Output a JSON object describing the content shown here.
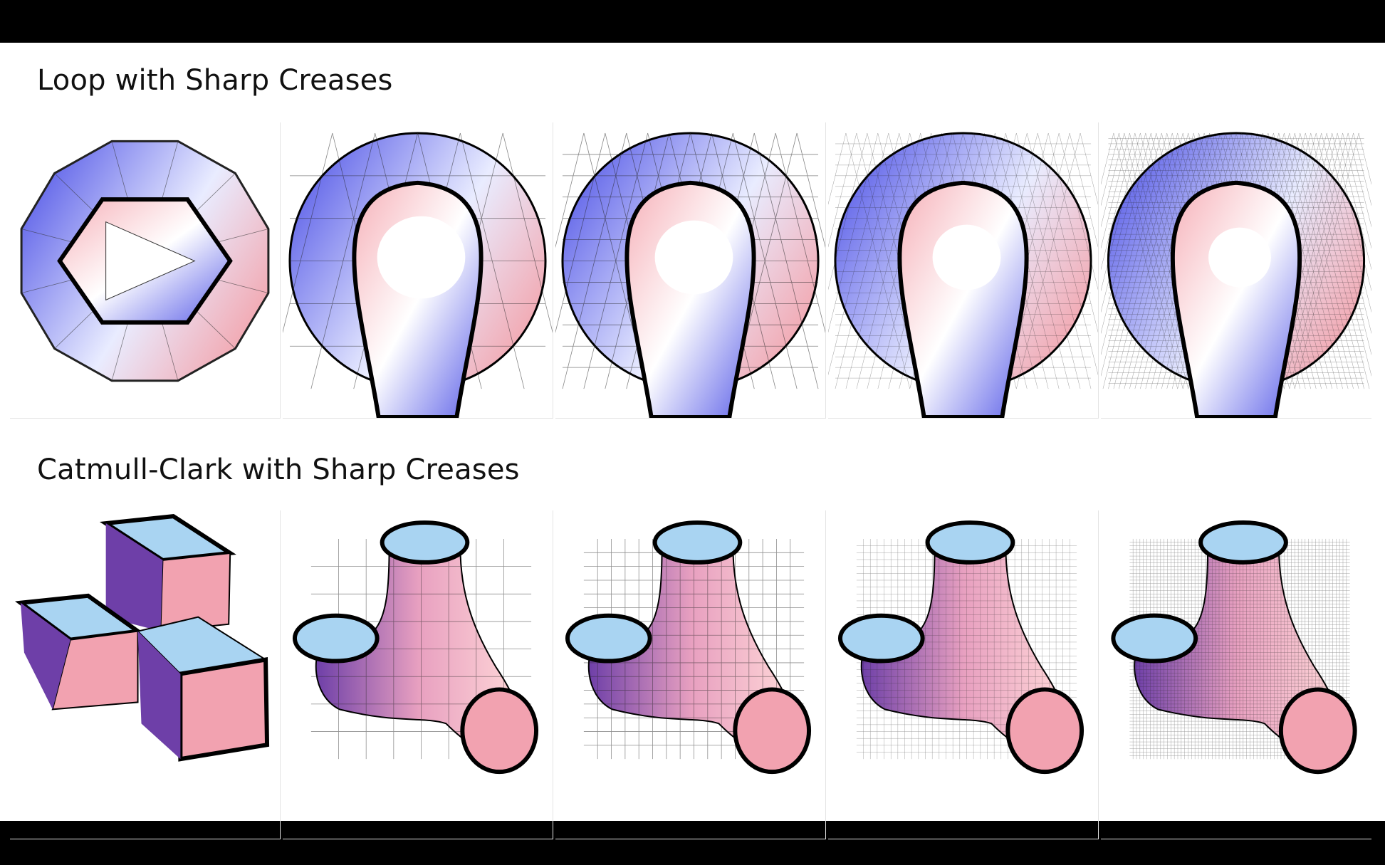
{
  "slide": {
    "sections": [
      {
        "title": "Loop with Sharp Creases",
        "scheme": "loop",
        "levels": [
          0,
          1,
          2,
          3,
          4
        ]
      },
      {
        "title": "Catmull-Clark with Sharp Creases",
        "scheme": "catmull-clark",
        "levels": [
          0,
          1,
          2,
          3,
          4
        ]
      }
    ],
    "colors": {
      "blue": "#5a5ee8",
      "light_blue": "#a9d4f2",
      "pink": "#f2a2b0",
      "purple": "#6e3fa8",
      "crease": "#000000"
    }
  }
}
